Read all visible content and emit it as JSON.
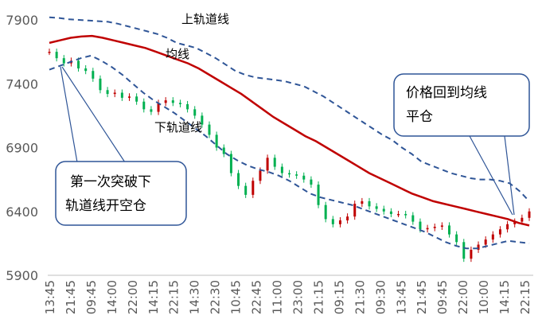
{
  "chart_data": {
    "type": "line",
    "title": "",
    "xlabel": "",
    "ylabel": "",
    "ylim": [
      5900,
      7900
    ],
    "y_ticks": [
      5900,
      6400,
      6900,
      7400,
      7900
    ],
    "x_ticks": [
      "13:45",
      "21:45",
      "09:45",
      "14:00",
      "22:00",
      "14:15",
      "22:15",
      "14:30",
      "22:30",
      "10:45",
      "22:45",
      "11:00",
      "23:00",
      "21:15",
      "09:15",
      "21:30",
      "09:30",
      "13:45",
      "21:45",
      "09:45",
      "22:00",
      "10:00",
      "14:15",
      "22:15"
    ],
    "grid": "none",
    "legend": "none",
    "series": [
      {
        "name": "上轨道线",
        "style": "dashed",
        "color": "#2f5597",
        "values": [
          7920,
          7915,
          7905,
          7900,
          7895,
          7890,
          7885,
          7870,
          7850,
          7830,
          7810,
          7790,
          7760,
          7720,
          7700,
          7680,
          7640,
          7600,
          7550,
          7500,
          7470,
          7450,
          7440,
          7430,
          7420,
          7400,
          7380,
          7340,
          7300,
          7250,
          7200,
          7150,
          7100,
          7050,
          7000,
          6960,
          6900,
          6850,
          6790,
          6760,
          6730,
          6700,
          6680,
          6660,
          6650,
          6650,
          6640,
          6620,
          6560,
          6480
        ]
      },
      {
        "name": "均线",
        "style": "solid",
        "color": "#c00000",
        "values": [
          7720,
          7740,
          7760,
          7770,
          7775,
          7760,
          7740,
          7720,
          7700,
          7680,
          7650,
          7620,
          7590,
          7560,
          7520,
          7470,
          7420,
          7370,
          7320,
          7260,
          7200,
          7140,
          7090,
          7040,
          6990,
          6950,
          6900,
          6850,
          6800,
          6750,
          6700,
          6660,
          6620,
          6580,
          6540,
          6510,
          6480,
          6460,
          6440,
          6420,
          6400,
          6380,
          6360,
          6340,
          6310,
          6290
        ]
      },
      {
        "name": "下轨道线",
        "style": "dashed",
        "color": "#2f5597",
        "values": [
          7510,
          7540,
          7570,
          7600,
          7620,
          7580,
          7530,
          7470,
          7400,
          7330,
          7270,
          7220,
          7170,
          7110,
          7050,
          6990,
          6920,
          6850,
          6800,
          6760,
          6730,
          6710,
          6680,
          6640,
          6590,
          6540,
          6510,
          6490,
          6470,
          6450,
          6420,
          6390,
          6360,
          6330,
          6300,
          6270,
          6240,
          6200,
          6160,
          6130,
          6110,
          6110,
          6130,
          6150,
          6170,
          6160,
          6150
        ]
      },
      {
        "name": "价格",
        "style": "candles",
        "color_up": "#c00000",
        "color_down": "#00b050",
        "values": [
          7650,
          7600,
          7560,
          7580,
          7520,
          7500,
          7440,
          7350,
          7320,
          7330,
          7290,
          7300,
          7260,
          7200,
          7180,
          7250,
          7270,
          7250,
          7240,
          7200,
          7150,
          7080,
          7000,
          6900,
          6850,
          6700,
          6600,
          6530,
          6640,
          6720,
          6820,
          6750,
          6700,
          6690,
          6680,
          6650,
          6610,
          6450,
          6340,
          6300,
          6330,
          6360,
          6460,
          6480,
          6440,
          6420,
          6400,
          6380,
          6380,
          6370,
          6320,
          6260,
          6270,
          6280,
          6290,
          6220,
          6160,
          6030,
          6100,
          6140,
          6180,
          6220,
          6260,
          6300,
          6320,
          6350,
          6400
        ]
      }
    ],
    "annotations": {
      "upper_label": "上轨道线",
      "mid_label": "均线",
      "lower_label": "下轨道线",
      "open_callout": [
        "第一次突破下",
        "轨道线开空仓"
      ],
      "close_callout": [
        "价格回到均线",
        "平仓"
      ]
    }
  }
}
